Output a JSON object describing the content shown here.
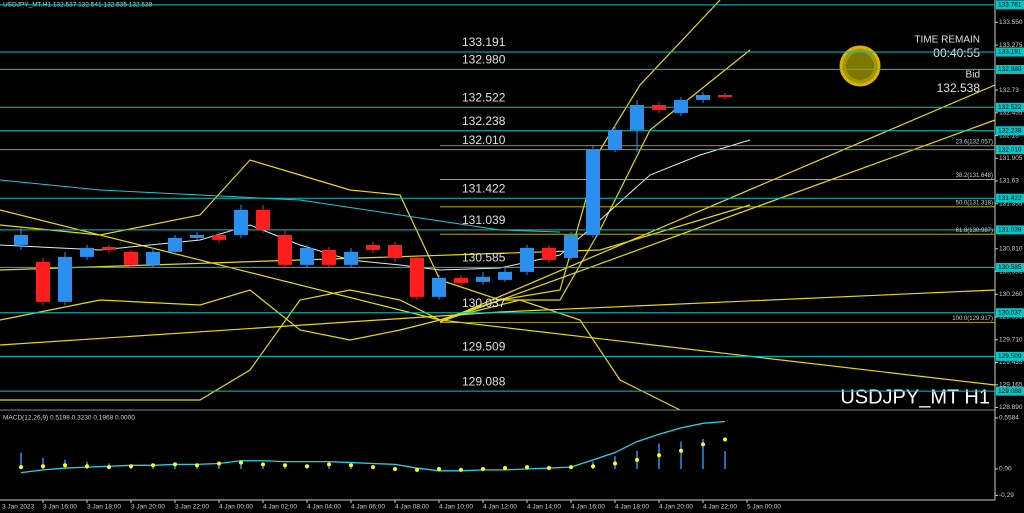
{
  "chart_data": [
    {
      "type": "candlestick",
      "title": "USDJPY_MT,H1  132.537 132.541 132.535 132.538",
      "watermark": "USDJPY_MT H1",
      "time_remain_label": "TIME REMAIN",
      "time_remain": "00:40:55",
      "bid_label": "Bid",
      "bid": 132.538,
      "categories": [
        "3 Jan 2023",
        null,
        "3 Jan 16:00",
        null,
        "3 Jan 18:00",
        null,
        "3 Jan 20:00",
        null,
        "3 Jan 22:00",
        null,
        "4 Jan 00:00",
        null,
        "4 Jan 02:00",
        null,
        "4 Jan 04:00",
        null,
        "4 Jan 06:00",
        null,
        "4 Jan 08:00",
        null,
        "4 Jan 10:00",
        null,
        "4 Jan 12:00",
        null,
        "4 Jan 14:00",
        null,
        "4 Jan 16:00",
        null,
        "4 Jan 18:00",
        null,
        "4 Jan 20:00",
        null,
        "4 Jan 22:00",
        null,
        "5 Jan 00:00"
      ],
      "open": [
        null,
        130.857,
        130.652,
        130.168,
        130.712,
        130.833,
        130.773,
        130.616,
        130.773,
        130.942,
        130.978,
        130.978,
        131.281,
        130.978,
        130.616,
        130.797,
        130.616,
        130.857,
        130.857,
        130.7,
        130.229,
        130.458,
        130.41,
        130.434,
        130.531,
        130.821,
        130.7,
        130.978,
        132.006,
        132.248,
        132.55,
        132.454,
        132.611,
        132.671,
        null
      ],
      "high": [
        null,
        131.063,
        130.7,
        130.773,
        130.857,
        130.857,
        130.797,
        130.821,
        130.978,
        131.015,
        131.015,
        131.341,
        131.341,
        131.039,
        130.857,
        130.833,
        130.821,
        130.894,
        130.894,
        130.737,
        130.495,
        130.495,
        130.531,
        130.579,
        130.857,
        130.857,
        131.015,
        132.067,
        132.309,
        132.611,
        132.587,
        132.647,
        132.708,
        132.695,
        null
      ],
      "low": [
        null,
        130.797,
        130.132,
        130.132,
        130.676,
        130.761,
        130.579,
        130.579,
        130.737,
        130.918,
        130.882,
        130.942,
        131.003,
        130.579,
        130.579,
        130.579,
        130.579,
        130.761,
        130.652,
        130.192,
        130.192,
        130.362,
        130.374,
        130.41,
        130.495,
        130.64,
        130.676,
        130.942,
        131.982,
        131.982,
        132.454,
        132.417,
        132.575,
        132.623,
        null
      ],
      "close": [
        null,
        130.978,
        130.168,
        130.712,
        130.821,
        130.797,
        130.616,
        130.773,
        130.942,
        130.978,
        130.918,
        131.281,
        131.039,
        130.616,
        130.821,
        130.616,
        130.773,
        130.797,
        130.7,
        130.229,
        130.458,
        130.398,
        130.471,
        130.531,
        130.821,
        130.676,
        130.978,
        132.006,
        132.248,
        132.55,
        132.49,
        132.611,
        132.671,
        132.647,
        null
      ],
      "up_color": "#2b8ff0",
      "down_color": "#ff1e1e",
      "ylim": [
        128.86,
        133.82
      ],
      "yticks": [
        {
          "value": 133.55,
          "label": "133.550"
        },
        133.275,
        132.73,
        132.455,
        132.18,
        131.905,
        131.63,
        131.355,
        {
          "value": 130.81,
          "label": "130.810"
        },
        130.535,
        {
          "value": 130.26,
          "label": "130.260"
        },
        129.985,
        {
          "value": 129.71,
          "label": "129.710"
        },
        129.435,
        129.165,
        {
          "value": 128.89,
          "label": "128.890"
        }
      ],
      "levels": {
        "color": "#00c8c8",
        "values": [
          133.761,
          133.191,
          {
            "value": 132.98,
            "label": "132.980"
          },
          132.522,
          132.238,
          {
            "value": 132.01,
            "label": "132.010"
          },
          131.422,
          131.039,
          130.585,
          130.037,
          129.509,
          129.088
        ]
      },
      "fib_levels": {
        "color": "#d8c800",
        "values": [
          {
            "value": 132.057,
            "label": "23.6(132.057)"
          },
          {
            "value": 131.648,
            "label": "38.2(131.648)"
          },
          {
            "value": 131.318,
            "label": "50.0(131.318)"
          },
          {
            "value": 130.987,
            "label": "61.8(130.987)"
          },
          {
            "value": 129.917,
            "label": "100.0(129.917)"
          }
        ]
      }
    },
    {
      "type": "macd",
      "title": "MACD(12,26,9) 0.5198 0.3230 0.1968 0.0000",
      "ylim": [
        -0.34,
        0.624
      ],
      "yticks": [
        0.5584,
        {
          "value": 0,
          "label": "0.00"
        },
        -0.29
      ],
      "histogram": {
        "color": "#2b8ff0",
        "values": [
          null,
          0.18,
          0.12,
          0.1,
          0.08,
          0.06,
          0.05,
          0.04,
          0.04,
          0.06,
          0.05,
          0.05,
          0.06,
          0.05,
          0.03,
          0.03,
          0.02,
          0.01,
          -0.01,
          -0.02,
          -0.03,
          -0.02,
          -0.02,
          -0.01,
          0.0,
          0.01,
          0.02,
          0.08,
          0.14,
          0.2,
          0.28,
          0.3,
          0.33,
          0.1968,
          null
        ]
      },
      "macd": {
        "color": "#22d3e6",
        "values": [
          null,
          -0.04,
          -0.01,
          0.01,
          0.02,
          0.03,
          0.04,
          0.04,
          0.05,
          0.05,
          0.06,
          0.09,
          0.09,
          0.08,
          0.08,
          0.08,
          0.07,
          0.06,
          0.05,
          0.01,
          -0.02,
          -0.02,
          -0.01,
          -0.01,
          0.0,
          0.01,
          0.02,
          0.1,
          0.18,
          0.3,
          0.38,
          0.45,
          0.5,
          0.5198,
          null
        ]
      },
      "signal": {
        "color": "#ffff00",
        "values": [
          null,
          0.02,
          0.03,
          0.04,
          0.03,
          0.02,
          0.03,
          0.04,
          0.05,
          0.04,
          0.06,
          0.07,
          0.05,
          0.04,
          0.03,
          0.05,
          0.04,
          0.02,
          0.0,
          -0.01,
          0.0,
          -0.01,
          0.0,
          0.01,
          0.02,
          0.01,
          0.02,
          0.03,
          0.06,
          0.1,
          0.15,
          0.2,
          0.27,
          0.323,
          null
        ]
      }
    }
  ]
}
